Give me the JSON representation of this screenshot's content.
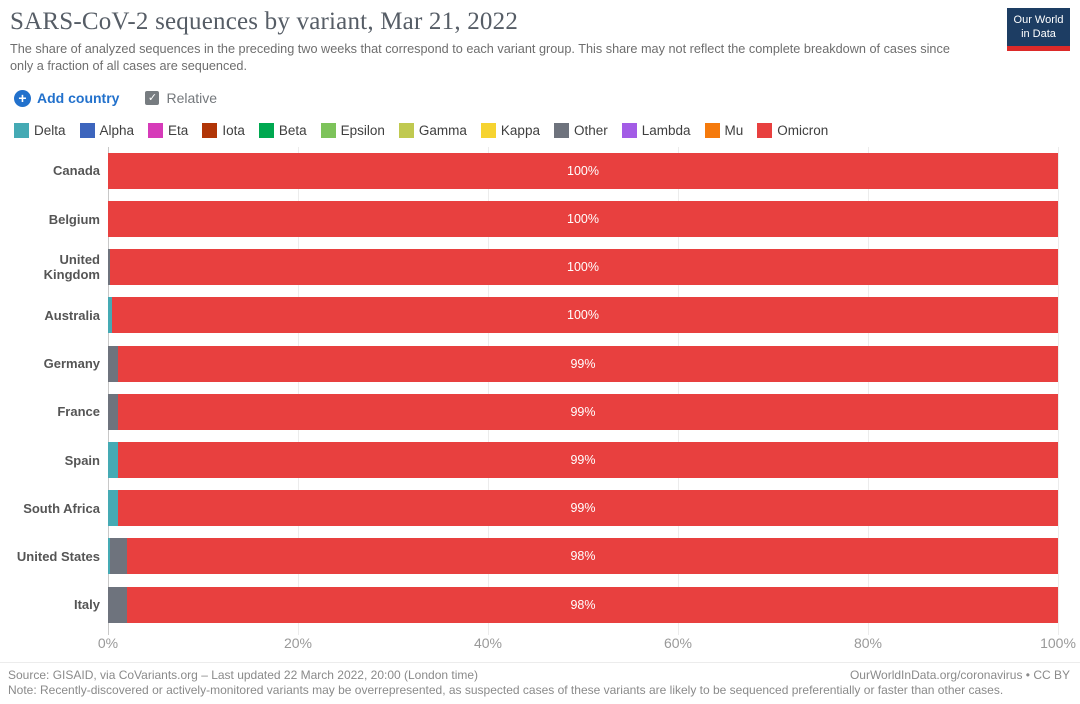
{
  "header": {
    "title": "SARS-CoV-2 sequences by variant, Mar 21, 2022",
    "subtitle": "The share of analyzed sequences in the preceding two weeks that correspond to each variant group. This share may not reflect the complete breakdown of cases since only a fraction of all cases are sequenced.",
    "logo_line1": "Our World",
    "logo_line2": "in Data",
    "logo_bg": "#1d3d63",
    "logo_stripe": "#dc2a29"
  },
  "controls": {
    "add_country_label": "Add country",
    "relative_label": "Relative",
    "relative_checked": true
  },
  "icons": {
    "plus": "+",
    "check": "✓"
  },
  "legend": {
    "items": [
      {
        "label": "Delta",
        "color": "#45aab4"
      },
      {
        "label": "Alpha",
        "color": "#3d65bd"
      },
      {
        "label": "Eta",
        "color": "#d63bb9"
      },
      {
        "label": "Iota",
        "color": "#b13507"
      },
      {
        "label": "Beta",
        "color": "#00a850"
      },
      {
        "label": "Epsilon",
        "color": "#7dc35a"
      },
      {
        "label": "Gamma",
        "color": "#c0c950"
      },
      {
        "label": "Kappa",
        "color": "#f6d330"
      },
      {
        "label": "Other",
        "color": "#6e737d"
      },
      {
        "label": "Lambda",
        "color": "#a35ce6"
      },
      {
        "label": "Mu",
        "color": "#f57a0c"
      },
      {
        "label": "Omicron",
        "color": "#e8403f"
      }
    ]
  },
  "chart_data": {
    "type": "bar",
    "orientation": "horizontal",
    "stacked": true,
    "unit": "%",
    "title": "SARS-CoV-2 sequences by variant, Mar 21, 2022",
    "xlabel": "",
    "ylabel": "",
    "xlim": [
      0,
      100
    ],
    "grid": true,
    "legend_position": "top",
    "x_ticks": [
      "0%",
      "20%",
      "40%",
      "60%",
      "80%",
      "100%"
    ],
    "categories": [
      "Canada",
      "Belgium",
      "United Kingdom",
      "Australia",
      "Germany",
      "France",
      "Spain",
      "South Africa",
      "United States",
      "Italy"
    ],
    "rows": [
      {
        "country": "Canada",
        "label": "100%",
        "segments": [
          {
            "variant": "Omicron",
            "value": 100
          }
        ]
      },
      {
        "country": "Belgium",
        "label": "100%",
        "segments": [
          {
            "variant": "Omicron",
            "value": 100
          }
        ]
      },
      {
        "country": "United Kingdom",
        "label": "100%",
        "segments": [
          {
            "variant": "Other",
            "value": 0.2
          },
          {
            "variant": "Omicron",
            "value": 99.8
          }
        ]
      },
      {
        "country": "Australia",
        "label": "100%",
        "segments": [
          {
            "variant": "Delta",
            "value": 0.4
          },
          {
            "variant": "Omicron",
            "value": 99.6
          }
        ]
      },
      {
        "country": "Germany",
        "label": "99%",
        "segments": [
          {
            "variant": "Other",
            "value": 1
          },
          {
            "variant": "Omicron",
            "value": 99
          }
        ]
      },
      {
        "country": "France",
        "label": "99%",
        "segments": [
          {
            "variant": "Other",
            "value": 1
          },
          {
            "variant": "Omicron",
            "value": 99
          }
        ]
      },
      {
        "country": "Spain",
        "label": "99%",
        "segments": [
          {
            "variant": "Delta",
            "value": 1
          },
          {
            "variant": "Omicron",
            "value": 99
          }
        ]
      },
      {
        "country": "South Africa",
        "label": "99%",
        "segments": [
          {
            "variant": "Delta",
            "value": 1
          },
          {
            "variant": "Omicron",
            "value": 99
          }
        ]
      },
      {
        "country": "United States",
        "label": "98%",
        "segments": [
          {
            "variant": "Delta",
            "value": 0.2
          },
          {
            "variant": "Other",
            "value": 1.8
          },
          {
            "variant": "Omicron",
            "value": 98
          }
        ]
      },
      {
        "country": "Italy",
        "label": "98%",
        "segments": [
          {
            "variant": "Other",
            "value": 2
          },
          {
            "variant": "Omicron",
            "value": 98
          }
        ]
      }
    ]
  },
  "footer": {
    "source": "Source: GISAID, via CoVariants.org – Last updated 22 March 2022, 20:00 (London time)",
    "note": "Note: Recently-discovered or actively-monitored variants may be overrepresented, as suspected cases of these variants are likely to be sequenced preferentially or faster than other cases.",
    "link": "OurWorldInData.org/coronavirus • CC BY"
  }
}
